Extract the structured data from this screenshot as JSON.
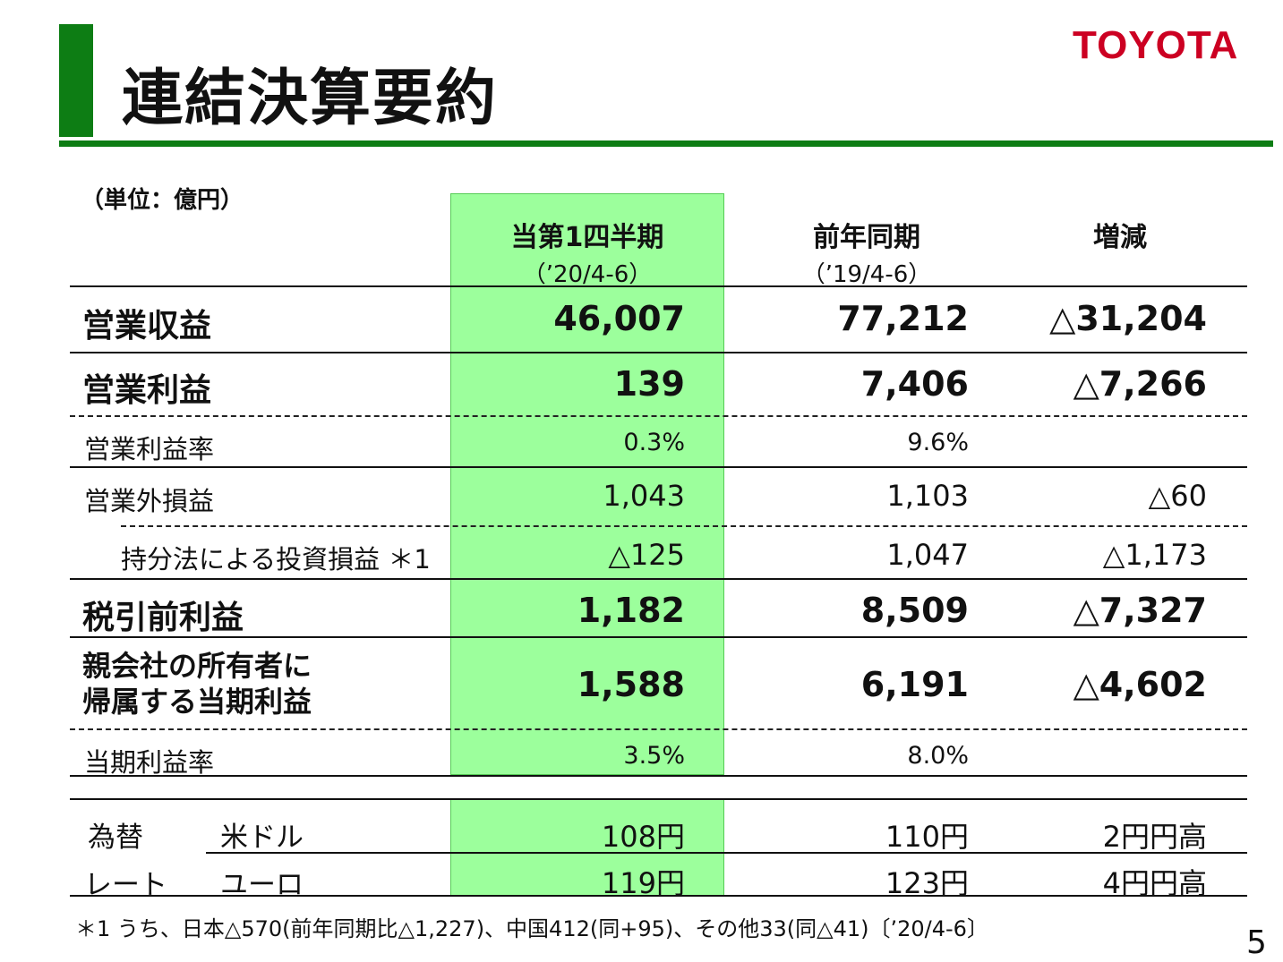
{
  "header": {
    "title": "連結決算要約",
    "brand": "TOYOTA"
  },
  "unit": "（単位：億円）",
  "columns": {
    "current": {
      "label": "当第1四半期",
      "period": "（’20/4-6）"
    },
    "prior": {
      "label": "前年同期",
      "period": "（’19/4-6）"
    },
    "change": {
      "label": "増減"
    }
  },
  "rows": {
    "revenue": {
      "label": "営業収益",
      "current": "46,007",
      "prior": "77,212",
      "change": "△31,204"
    },
    "op_income": {
      "label": "営業利益",
      "current": "139",
      "prior": "7,406",
      "change": "△7,266"
    },
    "op_margin": {
      "label": "営業利益率",
      "current": "0.3%",
      "prior": "9.6%"
    },
    "non_op": {
      "label": "営業外損益",
      "current": "1,043",
      "prior": "1,103",
      "change": "△60"
    },
    "equity_method": {
      "label": "持分法による投資損益 ＊1",
      "current": "△125",
      "prior": "1,047",
      "change": "△1,173"
    },
    "pretax": {
      "label": "税引前利益",
      "current": "1,182",
      "prior": "8,509",
      "change": "△7,327"
    },
    "net_income": {
      "label_line1": "親会社の所有者に",
      "label_line2": "帰属する当期利益",
      "current": "1,588",
      "prior": "6,191",
      "change": "△4,602"
    },
    "net_margin": {
      "label": "当期利益率",
      "current": "3.5%",
      "prior": "8.0%"
    }
  },
  "fx": {
    "label_line1": "為替",
    "label_line2": "レート",
    "usd": {
      "label": "米ドル",
      "current": "108円",
      "prior": "110円",
      "change": "2円円高"
    },
    "eur": {
      "label": "ユーロ",
      "current": "119円",
      "prior": "123円",
      "change": "4円円高"
    }
  },
  "footnote": "＊1 うち、日本△570(前年同期比△1,227)、中国412(同+95)、その他33(同△41)〔’20/4-6〕",
  "page_number": "5",
  "colors": {
    "accent_green": "#0d7d14",
    "highlight_green": "#9cff9c",
    "brand_red": "#cc0022"
  }
}
